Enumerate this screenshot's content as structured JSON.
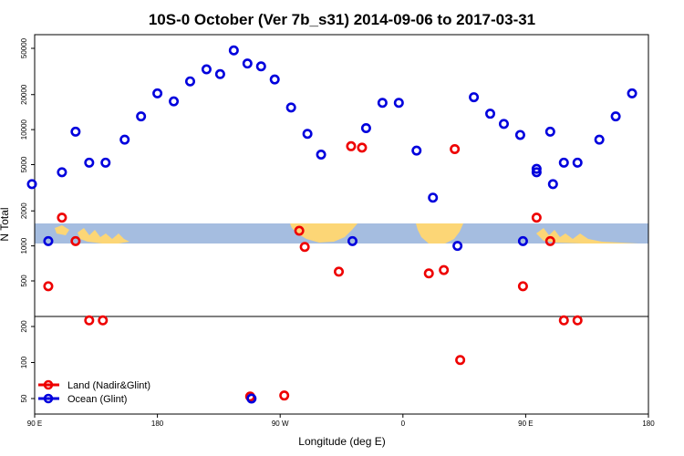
{
  "chart_data": {
    "type": "scatter",
    "title": "10S-0 October (Ver 7b_s31)   2014-09-06 to 2017-03-31",
    "xlabel": "Longitude (deg E)",
    "ylabel": "N Total",
    "x_ticks": [
      "90 E",
      "180",
      "90 W",
      "0",
      "90 E",
      "180"
    ],
    "y_ticks_upper": [
      "500",
      "1000",
      "2000",
      "5000",
      "10000",
      "20000",
      "50000"
    ],
    "y_ticks_lower": [
      "50",
      "100",
      "200"
    ],
    "ylim": [
      40,
      60000
    ],
    "y_scale": "log",
    "lower_panel_max": 250,
    "grid": false,
    "legend_position": "bottom-left",
    "map_band": {
      "lat_range": "10S-0",
      "ocean_color": "#a5bde0",
      "land_color": "#fcd676"
    },
    "colors": {
      "land": "#ee0000",
      "ocean": "#0000dd"
    },
    "series": [
      {
        "name": "Land (Nadir&Glint)",
        "color": "#ee0000",
        "points": [
          [
            100,
            450
          ],
          [
            110,
            1750
          ],
          [
            120,
            1100
          ],
          [
            130,
            225
          ],
          [
            140,
            225
          ],
          [
            284,
            1350
          ],
          [
            288,
            980
          ],
          [
            313,
            600
          ],
          [
            322,
            7200
          ],
          [
            330,
            7000
          ],
          [
            379,
            580
          ],
          [
            390,
            620
          ],
          [
            398,
            6800
          ],
          [
            402,
            105
          ],
          [
            448,
            450
          ],
          [
            458,
            1750
          ],
          [
            468,
            1100
          ],
          [
            478,
            225
          ],
          [
            488,
            225
          ],
          [
            248,
            52
          ],
          [
            273,
            53
          ]
        ]
      },
      {
        "name": "Ocean (Glint)",
        "color": "#0000dd",
        "points": [
          [
            88,
            3400
          ],
          [
            100,
            1100
          ],
          [
            110,
            4300
          ],
          [
            120,
            9600
          ],
          [
            130,
            5200
          ],
          [
            142,
            5200
          ],
          [
            156,
            8200
          ],
          [
            168,
            13000
          ],
          [
            180,
            20500
          ],
          [
            192,
            17500
          ],
          [
            204,
            26000
          ],
          [
            216,
            33000
          ],
          [
            226,
            30000
          ],
          [
            236,
            48000
          ],
          [
            246,
            37000
          ],
          [
            256,
            35000
          ],
          [
            266,
            27000
          ],
          [
            278,
            15500
          ],
          [
            290,
            9200
          ],
          [
            300,
            6100
          ],
          [
            323,
            1100
          ],
          [
            333,
            10300
          ],
          [
            345,
            17000
          ],
          [
            357,
            17000
          ],
          [
            370,
            6600
          ],
          [
            382,
            2600
          ],
          [
            400,
            1000
          ],
          [
            412,
            19000
          ],
          [
            424,
            13700
          ],
          [
            434,
            11200
          ],
          [
            446,
            9000
          ],
          [
            458,
            4600
          ],
          [
            470,
            3400
          ],
          [
            448,
            1100
          ],
          [
            458,
            4300
          ],
          [
            468,
            9600
          ],
          [
            478,
            5200
          ],
          [
            488,
            5200
          ],
          [
            504,
            8200
          ],
          [
            516,
            13000
          ],
          [
            528,
            20500
          ],
          [
            249,
            50
          ]
        ]
      }
    ]
  }
}
